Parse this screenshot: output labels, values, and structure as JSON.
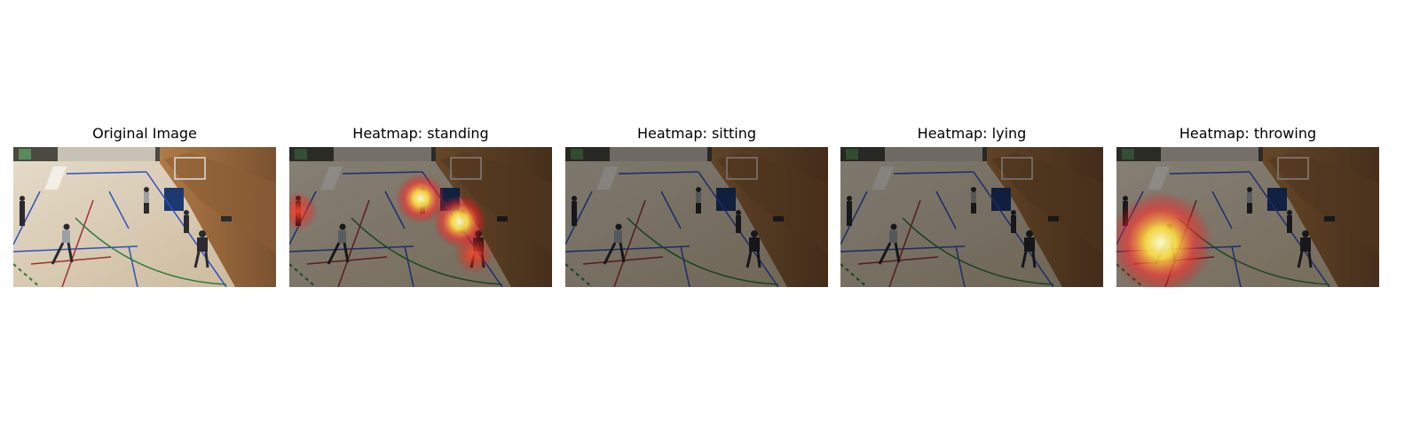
{
  "panels": [
    {
      "title": "Original Image"
    },
    {
      "title": "Heatmap: standing"
    },
    {
      "title": "Heatmap: sitting"
    },
    {
      "title": "Heatmap: lying"
    },
    {
      "title": "Heatmap: throwing"
    }
  ]
}
